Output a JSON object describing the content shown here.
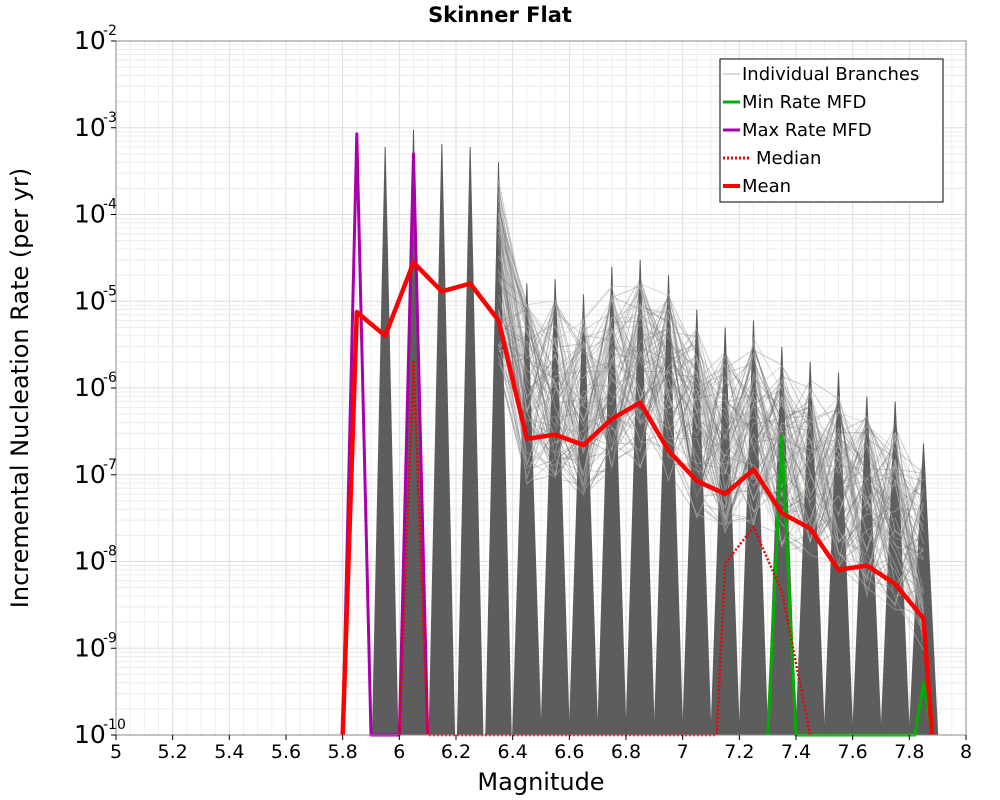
{
  "chart_data": {
    "type": "line",
    "title": "Skinner Flat",
    "xlabel": "Magnitude",
    "ylabel": "Incremental Nucleation Rate (per yr)",
    "xlim": [
      5,
      8
    ],
    "ylim": [
      1e-10,
      0.01
    ],
    "yscale": "log",
    "grid": true,
    "legend_position": "top-right",
    "x_ticks": [
      "5",
      "5.2",
      "5.4",
      "5.6",
      "5.8",
      "6",
      "6.2",
      "6.4",
      "6.6",
      "6.8",
      "7",
      "7.2",
      "7.4",
      "7.6",
      "7.8",
      "8"
    ],
    "y_ticks": [
      {
        "base": "10",
        "exp": "-10"
      },
      {
        "base": "10",
        "exp": "-9"
      },
      {
        "base": "10",
        "exp": "-8"
      },
      {
        "base": "10",
        "exp": "-7"
      },
      {
        "base": "10",
        "exp": "-6"
      },
      {
        "base": "10",
        "exp": "-5"
      },
      {
        "base": "10",
        "exp": "-4"
      },
      {
        "base": "10",
        "exp": "-3"
      },
      {
        "base": "10",
        "exp": "-2"
      }
    ],
    "legend": [
      {
        "label": "Individual Branches",
        "color": "#b0b0b0",
        "style": "solid"
      },
      {
        "label": "Min Rate MFD",
        "color": "#00b000",
        "style": "solid"
      },
      {
        "label": "Max Rate MFD",
        "color": "#aa00aa",
        "style": "solid"
      },
      {
        "label": "Median",
        "color": "#ee0000",
        "style": "dotted"
      },
      {
        "label": "Mean",
        "color": "#ff0000",
        "style": "solid"
      }
    ],
    "series": [
      {
        "name": "Individual Branches",
        "color": "#555555",
        "note_peaks_only": true,
        "spike_peaks": [
          {
            "x": 5.95,
            "y": 0.0006
          },
          {
            "x": 6.05,
            "y": 0.00095
          },
          {
            "x": 6.15,
            "y": 0.00065
          },
          {
            "x": 6.25,
            "y": 0.0006
          },
          {
            "x": 6.35,
            "y": 0.0004
          },
          {
            "x": 6.45,
            "y": 1.6e-05
          },
          {
            "x": 6.55,
            "y": 1.8e-05
          },
          {
            "x": 6.65,
            "y": 1.2e-05
          },
          {
            "x": 6.75,
            "y": 2.5e-05
          },
          {
            "x": 6.85,
            "y": 3e-05
          },
          {
            "x": 6.95,
            "y": 2e-05
          },
          {
            "x": 7.05,
            "y": 8e-06
          },
          {
            "x": 7.15,
            "y": 5e-06
          },
          {
            "x": 7.25,
            "y": 6e-06
          },
          {
            "x": 7.35,
            "y": 3e-06
          },
          {
            "x": 7.45,
            "y": 2e-06
          },
          {
            "x": 7.55,
            "y": 1.5e-06
          },
          {
            "x": 7.65,
            "y": 8e-07
          },
          {
            "x": 7.75,
            "y": 7e-07
          },
          {
            "x": 7.85,
            "y": 2.3e-07
          }
        ]
      },
      {
        "name": "Min Rate MFD",
        "color": "#00b000",
        "points": [
          [
            7.3,
            1e-10
          ],
          [
            7.35,
            2.8e-07
          ],
          [
            7.4,
            1e-10
          ],
          [
            7.82,
            1e-10
          ],
          [
            7.85,
            4e-10
          ],
          [
            7.88,
            1e-10
          ]
        ]
      },
      {
        "name": "Max Rate MFD",
        "color": "#aa00aa",
        "points": [
          [
            5.8,
            1e-10
          ],
          [
            5.85,
            0.00085
          ],
          [
            5.9,
            1e-10
          ],
          [
            6.0,
            1e-10
          ],
          [
            6.05,
            0.0005
          ],
          [
            6.1,
            1e-10
          ]
        ]
      },
      {
        "name": "Median",
        "color": "#ee0000",
        "points": [
          [
            6.0,
            1e-10
          ],
          [
            6.05,
            2e-06
          ],
          [
            6.1,
            1e-10
          ],
          [
            7.12,
            1e-10
          ],
          [
            7.15,
            9.5e-09
          ],
          [
            7.25,
            2.5e-08
          ],
          [
            7.35,
            4.5e-09
          ],
          [
            7.45,
            1e-10
          ]
        ]
      },
      {
        "name": "Mean",
        "color": "#ff0000",
        "points": [
          [
            5.8,
            1e-10
          ],
          [
            5.85,
            7.5e-06
          ],
          [
            5.95,
            4e-06
          ],
          [
            6.05,
            2.8e-05
          ],
          [
            6.15,
            1.3e-05
          ],
          [
            6.25,
            1.6e-05
          ],
          [
            6.35,
            6e-06
          ],
          [
            6.45,
            2.6e-07
          ],
          [
            6.55,
            2.9e-07
          ],
          [
            6.65,
            2.2e-07
          ],
          [
            6.75,
            4.4e-07
          ],
          [
            6.85,
            6.8e-07
          ],
          [
            6.95,
            1.9e-07
          ],
          [
            7.05,
            8.5e-08
          ],
          [
            7.15,
            6e-08
          ],
          [
            7.25,
            1.15e-07
          ],
          [
            7.35,
            3.6e-08
          ],
          [
            7.45,
            2.4e-08
          ],
          [
            7.55,
            8e-09
          ],
          [
            7.65,
            9e-09
          ],
          [
            7.75,
            5.5e-09
          ],
          [
            7.85,
            2.2e-09
          ],
          [
            7.88,
            1e-10
          ]
        ]
      }
    ]
  }
}
